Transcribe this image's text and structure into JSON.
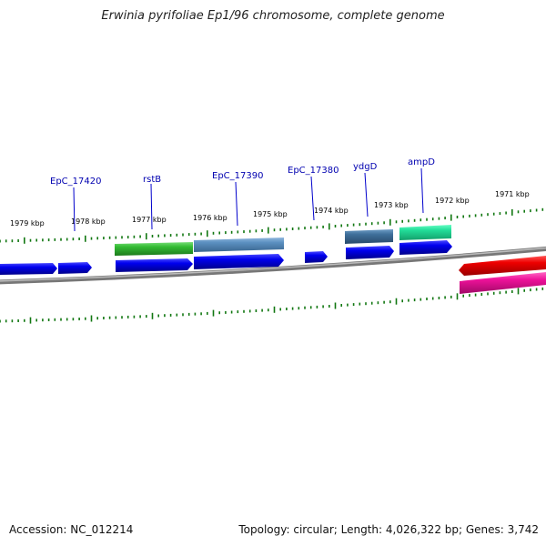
{
  "title": "Erwinia pyrifoliae Ep1/96 chromosome, complete genome",
  "accession": "Accession: NC_012214",
  "summary": "Topology: circular; Length: 4,026,322 bp; Genes: 3,742",
  "scale_labels": [
    "1979 kbp",
    "1978 kbp",
    "1977 kbp",
    "1976 kbp",
    "1975 kbp",
    "1974 kbp",
    "1973 kbp",
    "1972 kbp",
    "1971 kbp"
  ],
  "gene_labels": [
    "EpC_17420",
    "rstB",
    "EpC_17390",
    "EpC_17380",
    "ydgD",
    "ampD"
  ],
  "colors": {
    "cds": "#0000ee",
    "green_feature": "#33bb33",
    "steel_feature": "#5b8fc0",
    "slate_feature": "#3f6f9a",
    "teal_feature": "#22dd99",
    "red_feature": "#ee0000",
    "magenta_feature": "#ee1199",
    "backbone": "#888888",
    "ticks": "#117711",
    "label": "#0000b0"
  }
}
